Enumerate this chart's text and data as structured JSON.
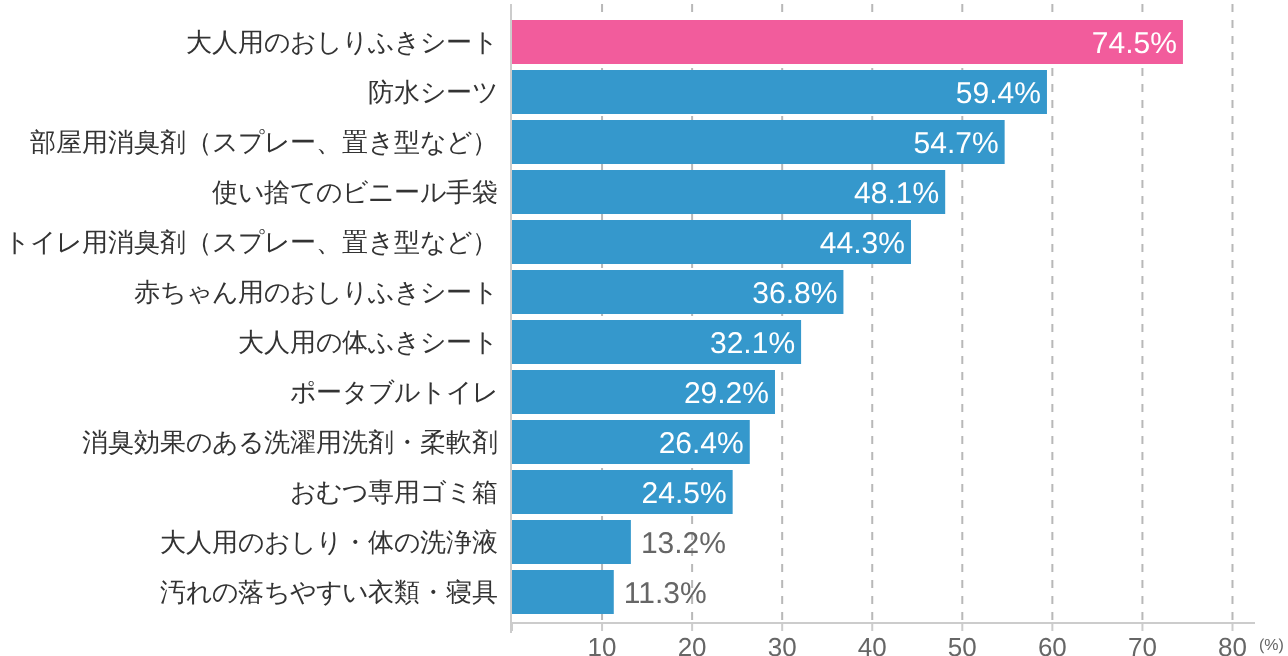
{
  "chart_data": {
    "type": "bar",
    "orientation": "horizontal",
    "categories": [
      "大人用のおしりふきシート",
      "防水シーツ",
      "部屋用消臭剤（スプレー、置き型など）",
      "使い捨てのビニール手袋",
      "トイレ用消臭剤（スプレー、置き型など）",
      "赤ちゃん用のおしりふきシート",
      "大人用の体ふきシート",
      "ポータブルトイレ",
      "消臭効果のある洗濯用洗剤・柔軟剤",
      "おむつ専用ゴミ箱",
      "大人用のおしり・体の洗浄液",
      "汚れの落ちやすい衣類・寝具"
    ],
    "values": [
      74.5,
      59.4,
      54.7,
      48.1,
      44.3,
      36.8,
      32.1,
      29.2,
      26.4,
      24.5,
      13.2,
      11.3
    ],
    "value_labels": [
      "74.5%",
      "59.4%",
      "54.7%",
      "48.1%",
      "44.3%",
      "36.8%",
      "32.1%",
      "29.2%",
      "26.4%",
      "24.5%",
      "13.2%",
      "11.3%"
    ],
    "colors": [
      "#f25c9c",
      "#3598cc",
      "#3598cc",
      "#3598cc",
      "#3598cc",
      "#3598cc",
      "#3598cc",
      "#3598cc",
      "#3598cc",
      "#3598cc",
      "#3598cc",
      "#3598cc"
    ],
    "xlim": [
      0,
      82.5
    ],
    "xticks": [
      {
        "value": 0,
        "label": null
      },
      10,
      20,
      30,
      40,
      50,
      60,
      70,
      80
    ],
    "xlabel": "(%)",
    "grid": "x"
  }
}
